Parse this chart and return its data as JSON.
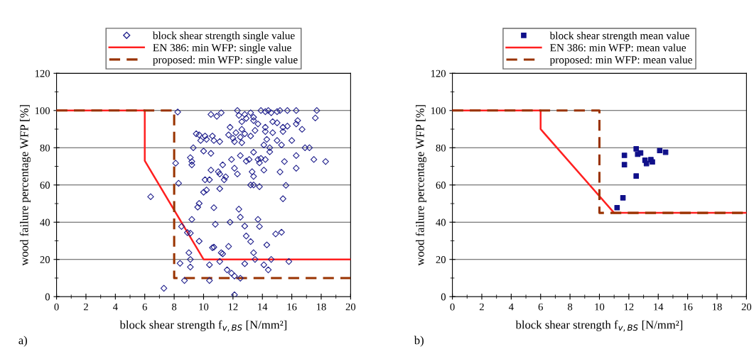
{
  "chart_data": [
    {
      "type": "scatter",
      "xlabel": "block shear strength f$_{v,BS}$ [N/mm²]",
      "ylabel": "wood failure percentage WFP [%]",
      "annotations": [
        "a)"
      ],
      "xlim": [
        0,
        20
      ],
      "ylim": [
        0,
        120
      ],
      "xticks": [
        0,
        2,
        4,
        6,
        8,
        10,
        12,
        14,
        16,
        18,
        20
      ],
      "yticks": [
        0,
        20,
        40,
        60,
        80,
        100,
        120
      ],
      "grid": "y",
      "legend": "top",
      "series": [
        {
          "name": "block shear strength single value",
          "type": "scatter",
          "marker": "diamond",
          "color": "#1f1f8c",
          "x": [
            8.24,
            10.5,
            10.9,
            11.2,
            12.3,
            12.4,
            12.8,
            13.2,
            12.6,
            12.9,
            13.4,
            13.9,
            14.2,
            14.4,
            14.6,
            15.0,
            15.2,
            15.7,
            16.3,
            17.7,
            17.6,
            14.7,
            15.0,
            16.4,
            16.3,
            16.7,
            15.4,
            15.7,
            13.7,
            13.4,
            14.2,
            14.2,
            14.7,
            15.4,
            13.5,
            13.2,
            12.8,
            12.6,
            12.2,
            11.8,
            11.7,
            12.0,
            12.1,
            12.5,
            12.6,
            14.3,
            15.0,
            15.3,
            16.0,
            14.1,
            9.5,
            9.7,
            10.1,
            9.8,
            10.2,
            10.6,
            10.7,
            11.1,
            9.3,
            10.0,
            10.5,
            16.9,
            17.2,
            13.4,
            14.5,
            14.5,
            12.5,
            9.1,
            9.2,
            9.2,
            8.1,
            11.3,
            11.9,
            12.9,
            13.1,
            13.7,
            13.8,
            13.9,
            14.2,
            15.5,
            16.3,
            17.5,
            18.3,
            16.3,
            12.1,
            14.1,
            15.2,
            10.5,
            11.0,
            11.1,
            12.3,
            13.3,
            13.4,
            11.5,
            11.4,
            10.1,
            10.4,
            8.3,
            13.2,
            13.4,
            13.8,
            15.6,
            11.1,
            10.2,
            10.0,
            6.4,
            15.4,
            9.7,
            9.6,
            10.7,
            12.4,
            12.5,
            9.2,
            13.7,
            13.8,
            10.8,
            11.8,
            12.8,
            8.5,
            8.9,
            9.1,
            14.9,
            15.3,
            12.9,
            13.2,
            14.3,
            9.7,
            10.6,
            10.7,
            11.7,
            11.2,
            11.3,
            13.4,
            9.0,
            9.1,
            11.1,
            13.5,
            14.6,
            15.8,
            8.4,
            9.1,
            10.4,
            12.8,
            14.1,
            14.4,
            11.6,
            11.9,
            12.1,
            12.5,
            8.7,
            10.4,
            7.3,
            12.1
          ],
          "values": [
            99.2,
            97.9,
            96.9,
            98.8,
            100,
            97.4,
            97.9,
            98.8,
            94,
            95.8,
            96.4,
            100,
            99.4,
            100,
            98.8,
            99.4,
            100,
            100,
            100,
            100,
            96,
            94,
            93.4,
            94.6,
            92.8,
            89.9,
            91,
            91.6,
            92.8,
            94.6,
            91,
            88.7,
            88.1,
            88.7,
            89.3,
            86.3,
            87.5,
            89.9,
            88.1,
            91,
            86.9,
            85.1,
            83.3,
            85.7,
            82.7,
            84.5,
            83.9,
            81.5,
            83.9,
            81.5,
            87.5,
            86.9,
            86.3,
            83.9,
            84.5,
            86.3,
            83.9,
            83.3,
            80,
            78.2,
            77,
            80,
            80,
            77.6,
            77.8,
            80,
            75.8,
            74.7,
            72.6,
            70.8,
            71.7,
            70.8,
            73.7,
            72.8,
            73.7,
            73.7,
            71.9,
            74.3,
            73.7,
            72.6,
            75.8,
            73.7,
            72.6,
            69,
            69,
            68,
            67,
            68,
            67.1,
            65.9,
            65.9,
            67.1,
            64.6,
            64.4,
            62.8,
            62.8,
            62.8,
            60.9,
            60,
            60,
            59.1,
            59.8,
            58,
            57.3,
            56.1,
            53.7,
            52.6,
            50.1,
            48.1,
            47.8,
            47,
            42.7,
            41.5,
            41.5,
            37.7,
            38.9,
            40,
            37.9,
            37.7,
            34.4,
            34.1,
            33.7,
            34.6,
            32.6,
            29.6,
            27.8,
            29.8,
            26.3,
            26.6,
            27,
            23.6,
            23,
            23.6,
            23.6,
            20,
            18.9,
            20,
            20,
            18.9,
            17.9,
            15.9,
            17.1,
            17.7,
            17.1,
            14.4,
            14.4,
            12.6,
            11.1,
            9.9,
            8.7,
            8.7,
            4.5,
            1
          ]
        },
        {
          "name": "EN 386: min WFP: single value",
          "type": "line",
          "line_style": "solid",
          "color": "#ff2020",
          "x": [
            0,
            6,
            6,
            10,
            20
          ],
          "values": [
            100,
            100,
            73,
            20,
            20
          ]
        },
        {
          "name": "proposed: min WFP: single value",
          "type": "line",
          "line_style": "dashed",
          "color": "#993300",
          "x": [
            0,
            8,
            8,
            20
          ],
          "values": [
            100,
            100,
            10,
            10
          ]
        }
      ]
    },
    {
      "type": "scatter",
      "xlabel": "block shear strength f$_{v,BS}$ [N/mm²]",
      "ylabel": "wood failure percentage WFP [%]",
      "annotations": [
        "b)"
      ],
      "xlim": [
        0,
        20
      ],
      "ylim": [
        0,
        120
      ],
      "xticks": [
        0,
        2,
        4,
        6,
        8,
        10,
        12,
        14,
        16,
        18,
        20
      ],
      "yticks": [
        0,
        20,
        40,
        60,
        80,
        100,
        120
      ],
      "grid": "y",
      "legend": "top",
      "series": [
        {
          "name": "block shear strength mean value",
          "type": "scatter",
          "marker": "square",
          "color": "#10108a",
          "x": [
            11.2,
            11.6,
            11.7,
            11.7,
            12.5,
            12.6,
            12.8,
            12.5,
            13.1,
            13.2,
            13.5,
            13.6,
            14.1,
            14.5
          ],
          "values": [
            47.8,
            53.1,
            75.9,
            70.9,
            79.4,
            76.5,
            77.2,
            64.8,
            73.3,
            71.5,
            73.6,
            72.4,
            78.5,
            77.6
          ]
        },
        {
          "name": "EN 386: min WFP: mean value",
          "type": "line",
          "line_style": "solid",
          "color": "#ff2020",
          "x": [
            0,
            6,
            6,
            11,
            20
          ],
          "values": [
            100,
            100,
            90,
            45,
            45
          ]
        },
        {
          "name": "proposed: min WFP: mean value",
          "type": "line",
          "line_style": "dashed",
          "color": "#993300",
          "x": [
            0,
            10,
            10,
            20
          ],
          "values": [
            100,
            100,
            45,
            45
          ]
        }
      ]
    }
  ]
}
